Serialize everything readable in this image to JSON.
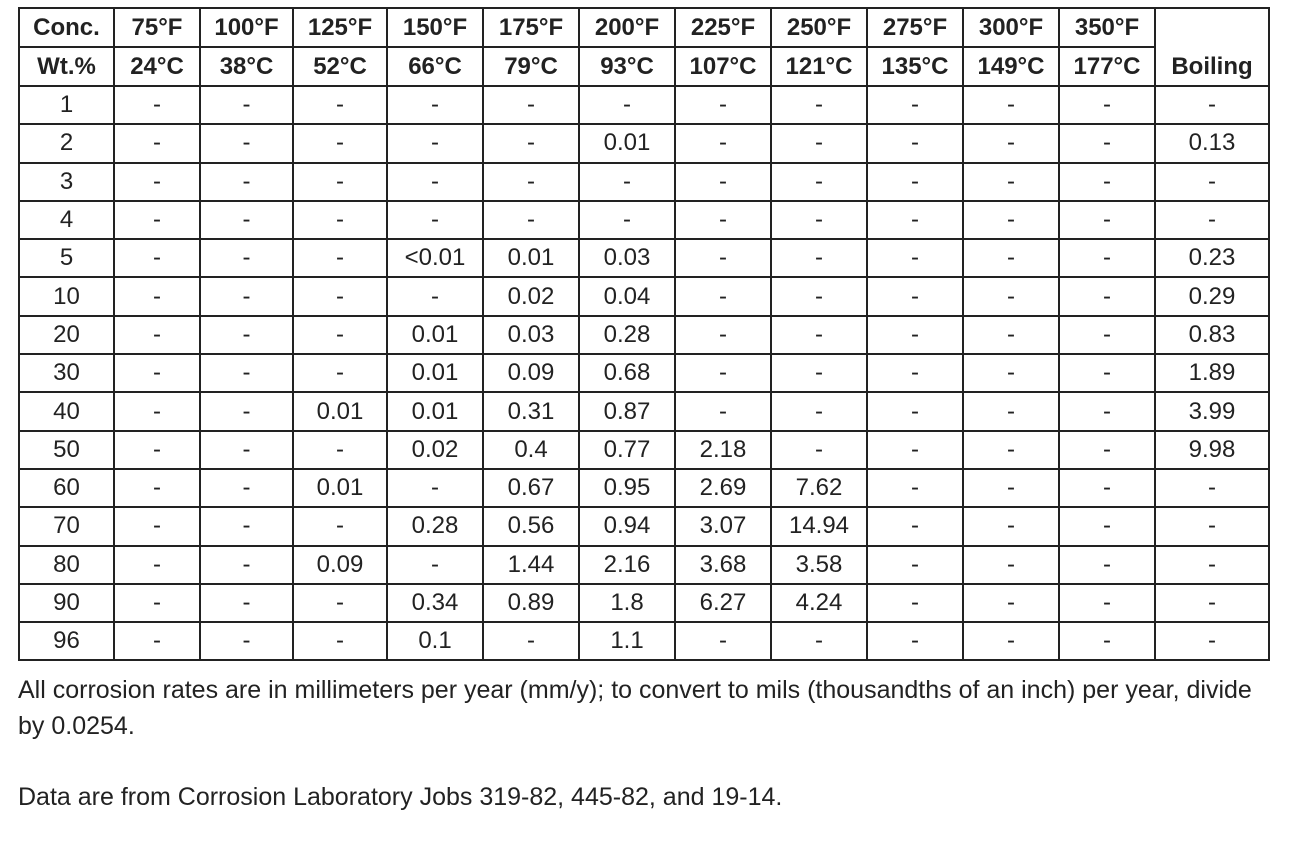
{
  "table": {
    "header": {
      "conc": [
        "Conc.",
        "Wt.%"
      ],
      "temps_f": [
        "75°F",
        "100°F",
        "125°F",
        "150°F",
        "175°F",
        "200°F",
        "225°F",
        "250°F",
        "275°F",
        "300°F",
        "350°F"
      ],
      "temps_c": [
        "24°C",
        "38°C",
        "52°C",
        "66°C",
        "79°C",
        "93°C",
        "107°C",
        "121°C",
        "135°C",
        "149°C",
        "177°C"
      ],
      "boiling": "Boiling"
    },
    "rows": [
      [
        "1",
        "-",
        "-",
        "-",
        "-",
        "-",
        "-",
        "-",
        "-",
        "-",
        "-",
        "-",
        "-"
      ],
      [
        "2",
        "-",
        "-",
        "-",
        "-",
        "-",
        "0.01",
        "-",
        "-",
        "-",
        "-",
        "-",
        "0.13"
      ],
      [
        "3",
        "-",
        "-",
        "-",
        "-",
        "-",
        "-",
        "-",
        "-",
        "-",
        "-",
        "-",
        "-"
      ],
      [
        "4",
        "-",
        "-",
        "-",
        "-",
        "-",
        "-",
        "-",
        "-",
        "-",
        "-",
        "-",
        "-"
      ],
      [
        "5",
        "-",
        "-",
        "-",
        "<0.01",
        "0.01",
        "0.03",
        "-",
        "-",
        "-",
        "-",
        "-",
        "0.23"
      ],
      [
        "10",
        "-",
        "-",
        "-",
        "-",
        "0.02",
        "0.04",
        "-",
        "-",
        "-",
        "-",
        "-",
        "0.29"
      ],
      [
        "20",
        "-",
        "-",
        "-",
        "0.01",
        "0.03",
        "0.28",
        "-",
        "-",
        "-",
        "-",
        "-",
        "0.83"
      ],
      [
        "30",
        "-",
        "-",
        "-",
        "0.01",
        "0.09",
        "0.68",
        "-",
        "-",
        "-",
        "-",
        "-",
        "1.89"
      ],
      [
        "40",
        "-",
        "-",
        "0.01",
        "0.01",
        "0.31",
        "0.87",
        "-",
        "-",
        "-",
        "-",
        "-",
        "3.99"
      ],
      [
        "50",
        "-",
        "-",
        "-",
        "0.02",
        "0.4",
        "0.77",
        "2.18",
        "-",
        "-",
        "-",
        "-",
        "9.98"
      ],
      [
        "60",
        "-",
        "-",
        "0.01",
        "-",
        "0.67",
        "0.95",
        "2.69",
        "7.62",
        "-",
        "-",
        "-",
        "-"
      ],
      [
        "70",
        "-",
        "-",
        "-",
        "0.28",
        "0.56",
        "0.94",
        "3.07",
        "14.94",
        "-",
        "-",
        "-",
        "-"
      ],
      [
        "80",
        "-",
        "-",
        "0.09",
        "-",
        "1.44",
        "2.16",
        "3.68",
        "3.58",
        "-",
        "-",
        "-",
        "-"
      ],
      [
        "90",
        "-",
        "-",
        "-",
        "0.34",
        "0.89",
        "1.8",
        "6.27",
        "4.24",
        "-",
        "-",
        "-",
        "-"
      ],
      [
        "96",
        "-",
        "-",
        "-",
        "0.1",
        "-",
        "1.1",
        "-",
        "-",
        "-",
        "-",
        "-",
        "-"
      ]
    ]
  },
  "notes": [
    "All corrosion rates are in millimeters per year (mm/y); to convert to mils (thousandths of an inch) per year, divide by 0.0254.",
    "Data are from Corrosion Laboratory Jobs 319-82, 445-82, and 19-14."
  ]
}
